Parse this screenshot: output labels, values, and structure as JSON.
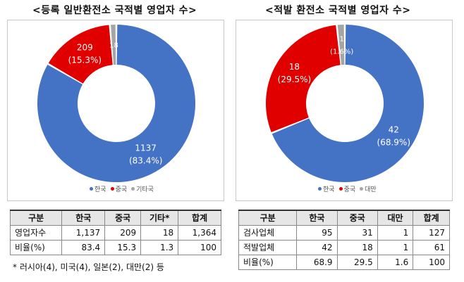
{
  "left": {
    "title": "<등록 일반환전소 국적별 영업자 수>",
    "chart_data": {
      "type": "pie",
      "labels": [
        "한국",
        "중국",
        "기타국"
      ],
      "values": [
        1137,
        209,
        18
      ],
      "percents": [
        "83.4%",
        "15.3%",
        ""
      ],
      "colors": [
        "#4472c4",
        "#e00000",
        "#a5a5a5"
      ]
    },
    "legend": [
      "한국",
      "중국",
      "기타국"
    ],
    "table": {
      "headers": [
        "구분",
        "한국",
        "중국",
        "기타*",
        "합계"
      ],
      "rows": [
        [
          "영업자수",
          "1,137",
          "209",
          "18",
          "1,364"
        ],
        [
          "비율(%)",
          "83.4",
          "15.3",
          "1.3",
          "100"
        ]
      ]
    },
    "note": "* 러시아(4), 미국(4), 일본(2), 대만(2) 등"
  },
  "right": {
    "title": "<적발 환전소 국적별 영업자 수>",
    "chart_data": {
      "type": "pie",
      "labels": [
        "한국",
        "중국",
        "대만"
      ],
      "values": [
        42,
        18,
        1
      ],
      "percents": [
        "68.9%",
        "29.5%",
        "1.6%"
      ],
      "colors": [
        "#4472c4",
        "#e00000",
        "#a5a5a5"
      ]
    },
    "legend": [
      "한국",
      "중국",
      "대만"
    ],
    "table": {
      "headers": [
        "구분",
        "한국",
        "중국",
        "대만",
        "합계"
      ],
      "rows": [
        [
          "검사업체",
          "95",
          "31",
          "1",
          "127"
        ],
        [
          "적발업체",
          "42",
          "18",
          "1",
          "61"
        ],
        [
          "비율(%)",
          "68.9",
          "29.5",
          "1.6",
          "100"
        ]
      ]
    }
  }
}
